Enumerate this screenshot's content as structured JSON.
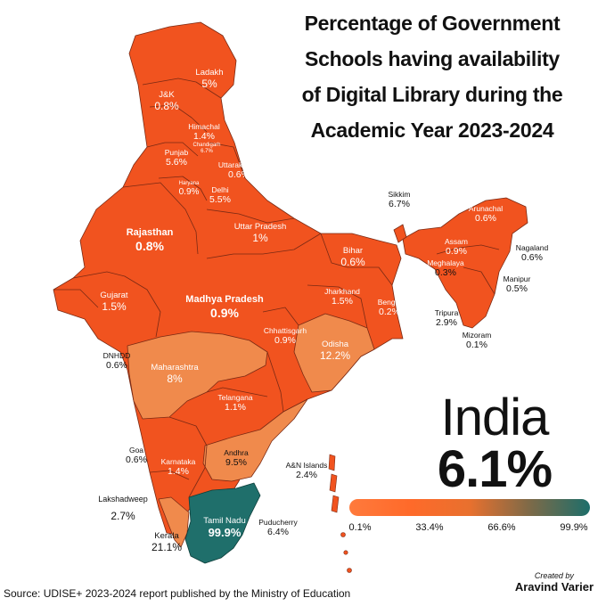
{
  "title": {
    "lines": [
      "Percentage of Government",
      "Schools having availability",
      "of Digital Library during the",
      "Academic Year 2023-2024"
    ]
  },
  "colors": {
    "low": "#f1531f",
    "mid": "#f08a4c",
    "high": "#1f6f6b",
    "border": "#7a2a14"
  },
  "national": {
    "name": "India",
    "value": "6.1%"
  },
  "legend": {
    "ticks": [
      "0.1%",
      "33.4%",
      "66.6%",
      "99.9%"
    ]
  },
  "regions": [
    {
      "name": "Ladakh",
      "value": "5%"
    },
    {
      "name": "J&K",
      "value": "0.8%"
    },
    {
      "name": "Himachal",
      "value": "1.4%"
    },
    {
      "name": "Chandigarh",
      "value": "6.7%"
    },
    {
      "name": "Punjab",
      "value": "5.6%"
    },
    {
      "name": "Uttarakhand",
      "value": "0.6%"
    },
    {
      "name": "Haryana",
      "value": "0.9%"
    },
    {
      "name": "Delhi",
      "value": "5.5%"
    },
    {
      "name": "Rajasthan",
      "value": "0.8%"
    },
    {
      "name": "Uttar Pradesh",
      "value": "1%"
    },
    {
      "name": "Bihar",
      "value": "0.6%"
    },
    {
      "name": "Sikkim",
      "value": "6.7%"
    },
    {
      "name": "Arunachal",
      "value": "0.6%"
    },
    {
      "name": "Assam",
      "value": "0.9%"
    },
    {
      "name": "Nagaland",
      "value": "0.6%"
    },
    {
      "name": "Meghalaya",
      "value": "0.3%"
    },
    {
      "name": "Manipur",
      "value": "0.5%"
    },
    {
      "name": "Tripura",
      "value": "2.9%"
    },
    {
      "name": "Mizoram",
      "value": "0.1%"
    },
    {
      "name": "Gujarat",
      "value": "1.5%"
    },
    {
      "name": "Madhya Pradesh",
      "value": "0.9%"
    },
    {
      "name": "Jharkhand",
      "value": "1.5%"
    },
    {
      "name": "Bengal",
      "value": "0.2%"
    },
    {
      "name": "DNHDD",
      "value": "0.6%"
    },
    {
      "name": "Chhattisgarh",
      "value": "0.9%"
    },
    {
      "name": "Odisha",
      "value": "12.2%"
    },
    {
      "name": "Maharashtra",
      "value": "8%"
    },
    {
      "name": "Telangana",
      "value": "1.1%"
    },
    {
      "name": "Goa",
      "value": "0.6%"
    },
    {
      "name": "Karnataka",
      "value": "1.4%"
    },
    {
      "name": "Andhra",
      "value": "9.5%"
    },
    {
      "name": "A&N Islands",
      "value": "2.4%"
    },
    {
      "name": "Lakshadweep",
      "value": "2.7%"
    },
    {
      "name": "Tamil Nadu",
      "value": "99.9%"
    },
    {
      "name": "Puducherry",
      "value": "6.4%"
    },
    {
      "name": "Kerala",
      "value": "21.1%"
    }
  ],
  "source": "Source: UDISE+ 2023-2024 report published by the Ministry of Education",
  "credit": {
    "line1": "Created by",
    "line2": "Aravind Varier"
  }
}
